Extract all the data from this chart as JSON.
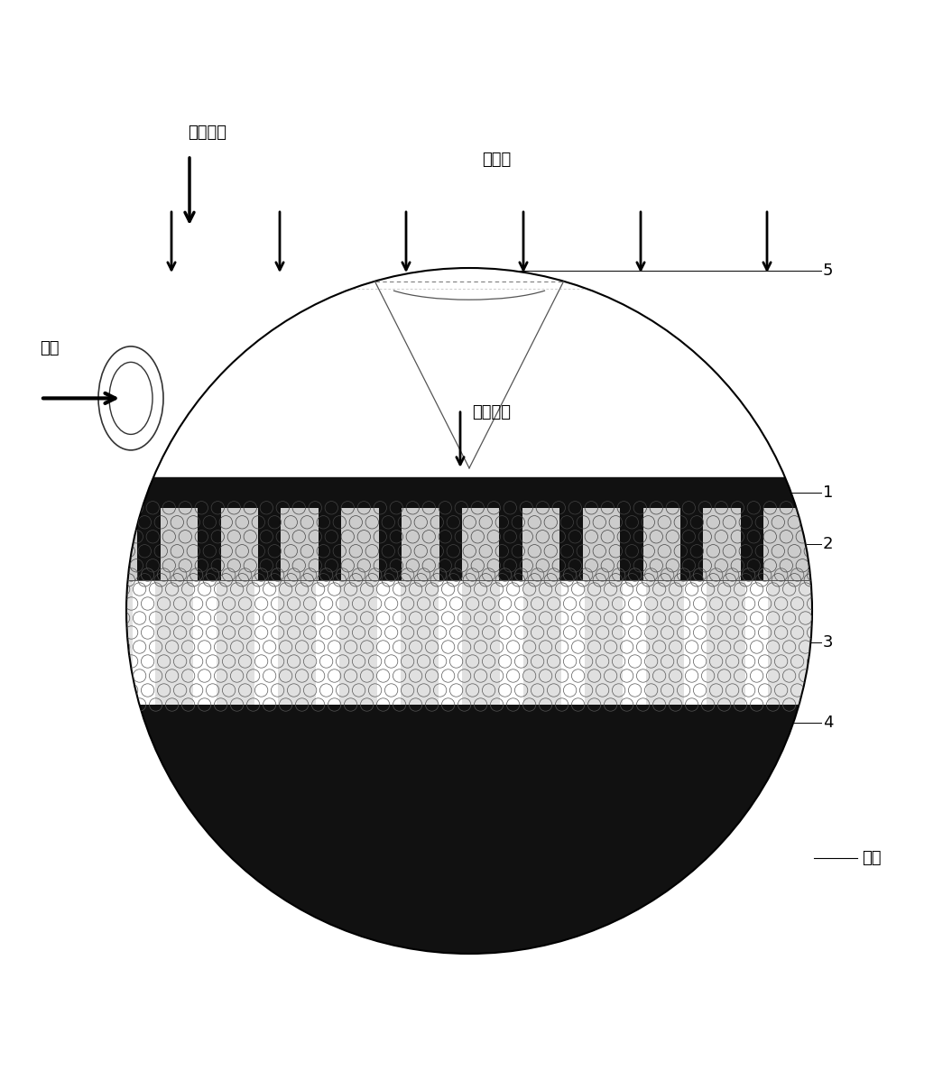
{
  "bg_color": "#ffffff",
  "labels": {
    "hot_humid_air_top": "热湿空气",
    "water_vapor": "水蔑汽",
    "cold_water_left": "冷水",
    "hot_humid_air_mid": "热湿空气",
    "cold_water_bottom": "冷水",
    "label_1": "1",
    "label_2": "2",
    "label_3": "3",
    "label_4": "4",
    "label_5": "5"
  }
}
